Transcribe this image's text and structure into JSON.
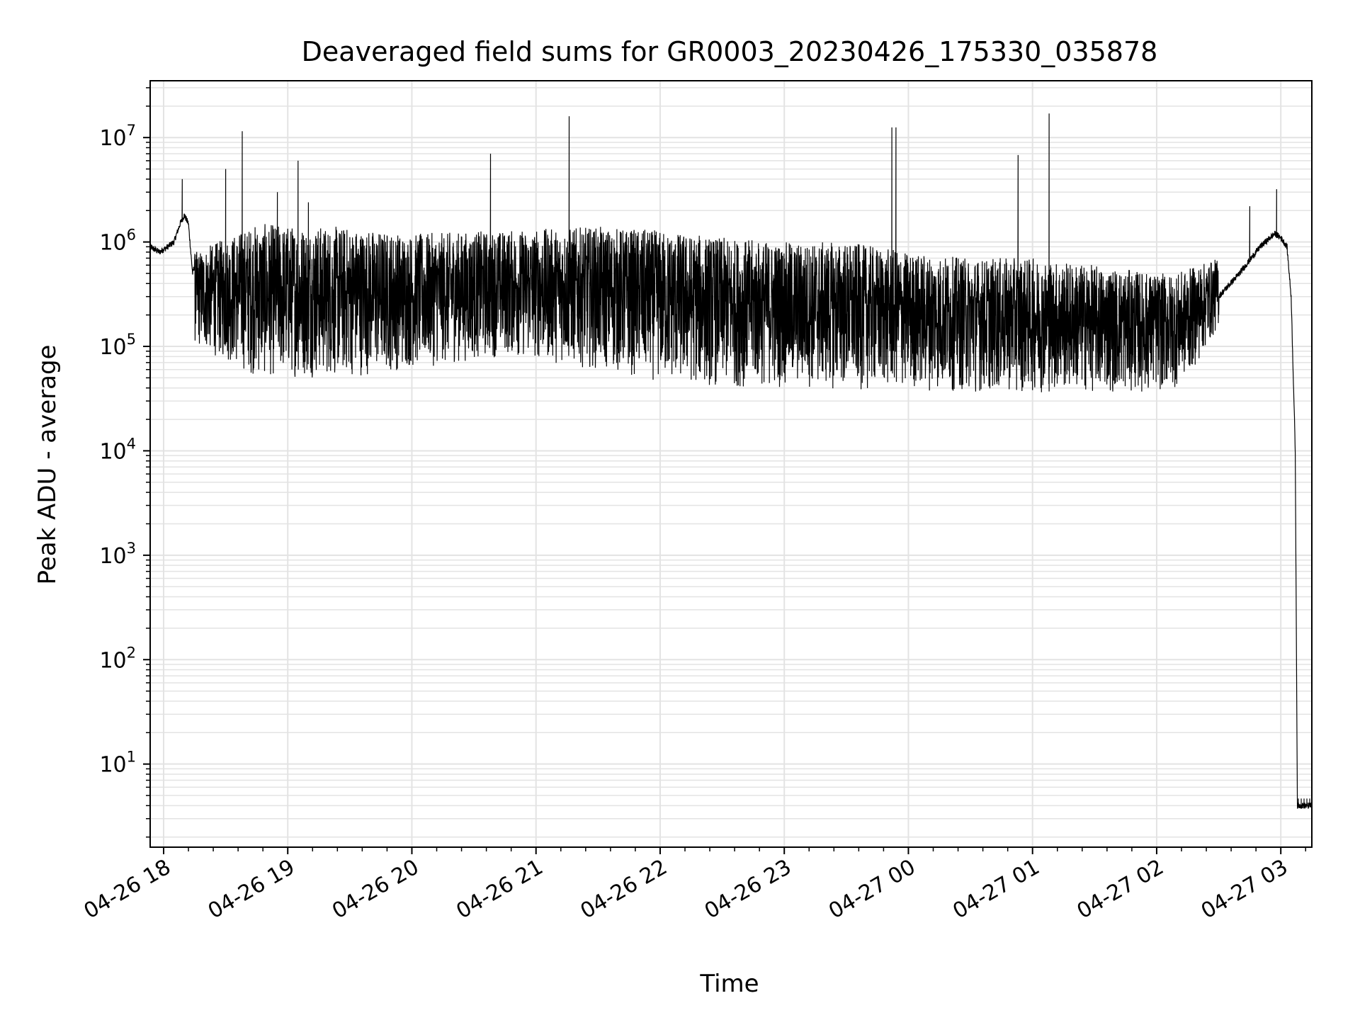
{
  "chart_data": {
    "type": "line",
    "title": "Deaveraged field sums for GR0003_20230426_175330_035878",
    "xlabel": "Time",
    "ylabel": "Peak ADU - average",
    "yscale": "log",
    "xlim": [
      "2023-04-26T17:53:30",
      "2023-04-27T03:15:00"
    ],
    "ylim": [
      1.6,
      35000000
    ],
    "grid": true,
    "x_ticks": [
      "04-26 18",
      "04-26 19",
      "04-26 20",
      "04-26 21",
      "04-26 22",
      "04-26 23",
      "04-27 00",
      "04-27 01",
      "04-27 02",
      "04-27 03"
    ],
    "y_ticks": [
      {
        "base": "10",
        "exp": "1"
      },
      {
        "base": "10",
        "exp": "2"
      },
      {
        "base": "10",
        "exp": "3"
      },
      {
        "base": "10",
        "exp": "4"
      },
      {
        "base": "10",
        "exp": "5"
      },
      {
        "base": "10",
        "exp": "6"
      },
      {
        "base": "10",
        "exp": "7"
      }
    ],
    "series": [
      {
        "color": "#000000",
        "x": [
          "2023-04-26T17:53:30",
          "2023-04-26T17:58:00",
          "2023-04-26T18:02:00",
          "2023-04-26T18:05:00",
          "2023-04-26T18:08:00",
          "2023-04-26T18:10:00",
          "2023-04-26T18:12:00",
          "2023-04-26T18:14:00",
          "2023-04-26T18:15:00",
          "2023-04-26T18:16:00",
          "2023-04-26T18:17:00",
          "2023-04-26T18:20:00",
          "2023-04-26T18:25:00",
          "2023-04-26T18:30:00",
          "2023-04-26T18:35:00",
          "2023-04-26T18:40:00",
          "2023-04-26T18:45:00",
          "2023-04-26T18:50:00",
          "2023-04-26T18:55:00",
          "2023-04-26T19:00:00",
          "2023-04-26T19:05:00",
          "2023-04-26T19:10:00",
          "2023-04-26T19:20:00",
          "2023-04-26T19:30:00",
          "2023-04-26T19:40:00",
          "2023-04-26T19:50:00",
          "2023-04-26T20:00:00",
          "2023-04-26T20:15:00",
          "2023-04-26T20:30:00",
          "2023-04-26T20:45:00",
          "2023-04-26T21:00:00",
          "2023-04-26T21:15:00",
          "2023-04-26T21:30:00",
          "2023-04-26T21:45:00",
          "2023-04-26T22:00:00",
          "2023-04-26T22:15:00",
          "2023-04-26T22:30:00",
          "2023-04-26T22:45:00",
          "2023-04-26T23:00:00",
          "2023-04-26T23:15:00",
          "2023-04-26T23:30:00",
          "2023-04-26T23:45:00",
          "2023-04-27T00:00:00",
          "2023-04-27T00:15:00",
          "2023-04-27T00:30:00",
          "2023-04-27T00:45:00",
          "2023-04-27T01:00:00",
          "2023-04-27T01:15:00",
          "2023-04-27T01:30:00",
          "2023-04-27T01:45:00",
          "2023-04-27T02:00:00",
          "2023-04-27T02:10:00",
          "2023-04-27T02:20:00",
          "2023-04-27T02:30:00",
          "2023-04-27T02:40:00",
          "2023-04-27T02:50:00",
          "2023-04-27T02:57:00",
          "2023-04-27T03:00:00",
          "2023-04-27T03:03:00",
          "2023-04-27T03:05:00",
          "2023-04-27T03:07:00",
          "2023-04-27T03:08:00",
          "2023-04-27T03:15:00"
        ],
        "y": [
          900000,
          800000,
          900000,
          1000000,
          1500000,
          1800000,
          1500000,
          500000,
          600000,
          700000,
          600000,
          500000,
          700000,
          600000,
          550000,
          500000,
          600000,
          500000,
          450000,
          500000,
          550000,
          500000,
          450000,
          500000,
          500000,
          450000,
          400000,
          450000,
          400000,
          500000,
          450000,
          400000,
          350000,
          300000,
          300000,
          250000,
          200000,
          180000,
          170000,
          150000,
          140000,
          130000,
          120000,
          110000,
          110000,
          100000,
          110000,
          100000,
          110000,
          100000,
          120000,
          150000,
          200000,
          300000,
          500000,
          900000,
          1200000,
          1100000,
          900000,
          300000,
          10000,
          4,
          4
        ],
        "spikes": [
          {
            "x": "2023-04-26T18:09:00",
            "y": 4000000
          },
          {
            "x": "2023-04-26T18:30:00",
            "y": 5000000
          },
          {
            "x": "2023-04-26T18:38:00",
            "y": 11500000
          },
          {
            "x": "2023-04-26T18:55:00",
            "y": 3000000
          },
          {
            "x": "2023-04-26T19:05:00",
            "y": 6000000
          },
          {
            "x": "2023-04-26T19:10:00",
            "y": 2400000
          },
          {
            "x": "2023-04-26T20:38:00",
            "y": 7000000
          },
          {
            "x": "2023-04-26T21:16:00",
            "y": 16000000
          },
          {
            "x": "2023-04-26T23:52:00",
            "y": 12500000
          },
          {
            "x": "2023-04-26T23:54:00",
            "y": 12500000
          },
          {
            "x": "2023-04-27T00:53:00",
            "y": 6800000
          },
          {
            "x": "2023-04-27T01:08:00",
            "y": 17000000
          },
          {
            "x": "2023-04-27T02:45:00",
            "y": 2200000
          },
          {
            "x": "2023-04-27T02:58:00",
            "y": 3200000
          }
        ],
        "lower_envelope": [
          {
            "x": "2023-04-26T18:15:00",
            "y": 100000
          },
          {
            "x": "2023-04-26T18:45:00",
            "y": 50000
          },
          {
            "x": "2023-04-26T19:30:00",
            "y": 50000
          },
          {
            "x": "2023-04-26T20:00:00",
            "y": 60000
          },
          {
            "x": "2023-04-26T20:45:00",
            "y": 80000
          },
          {
            "x": "2023-04-26T21:30:00",
            "y": 60000
          },
          {
            "x": "2023-04-26T22:00:00",
            "y": 45000
          },
          {
            "x": "2023-04-26T22:30:00",
            "y": 40000
          },
          {
            "x": "2023-04-26T23:00:00",
            "y": 40000
          },
          {
            "x": "2023-04-26T23:30:00",
            "y": 38000
          },
          {
            "x": "2023-04-27T00:00:00",
            "y": 38000
          },
          {
            "x": "2023-04-27T00:30:00",
            "y": 36000
          },
          {
            "x": "2023-04-27T01:00:00",
            "y": 36000
          },
          {
            "x": "2023-04-27T01:30:00",
            "y": 36000
          },
          {
            "x": "2023-04-27T02:00:00",
            "y": 36000
          },
          {
            "x": "2023-04-27T02:10:00",
            "y": 40000
          },
          {
            "x": "2023-04-27T02:20:00",
            "y": 70000
          },
          {
            "x": "2023-04-27T02:30:00",
            "y": 150000
          }
        ],
        "upper_envelope": [
          {
            "x": "2023-04-26T18:15:00",
            "y": 800000
          },
          {
            "x": "2023-04-26T18:45:00",
            "y": 1500000
          },
          {
            "x": "2023-04-26T19:30:00",
            "y": 1400000
          },
          {
            "x": "2023-04-26T20:00:00",
            "y": 1200000
          },
          {
            "x": "2023-04-26T20:45:00",
            "y": 1300000
          },
          {
            "x": "2023-04-26T21:30:00",
            "y": 1400000
          },
          {
            "x": "2023-04-26T22:00:00",
            "y": 1300000
          },
          {
            "x": "2023-04-26T22:30:00",
            "y": 1100000
          },
          {
            "x": "2023-04-26T23:00:00",
            "y": 1000000
          },
          {
            "x": "2023-04-26T23:30:00",
            "y": 1000000
          },
          {
            "x": "2023-04-27T00:00:00",
            "y": 800000
          },
          {
            "x": "2023-04-27T00:30:00",
            "y": 700000
          },
          {
            "x": "2023-04-27T01:00:00",
            "y": 700000
          },
          {
            "x": "2023-04-27T01:30:00",
            "y": 600000
          },
          {
            "x": "2023-04-27T02:00:00",
            "y": 500000
          },
          {
            "x": "2023-04-27T02:10:00",
            "y": 500000
          },
          {
            "x": "2023-04-27T02:20:00",
            "y": 600000
          },
          {
            "x": "2023-04-27T02:30:00",
            "y": 700000
          }
        ]
      }
    ]
  }
}
